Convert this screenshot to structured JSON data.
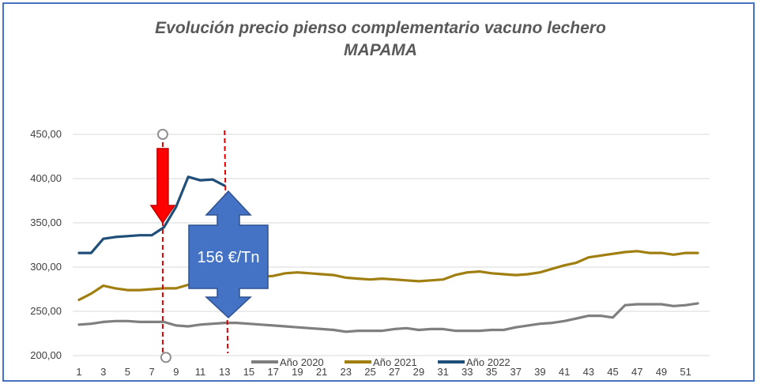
{
  "chart_data": {
    "type": "line",
    "title": "Evolución precio pienso complementario vacuno lechero",
    "subtitle": "MAPAMA",
    "xlabel": "",
    "ylabel": "",
    "ylim": [
      200,
      450
    ],
    "yticks": [
      "200,00",
      "250,00",
      "300,00",
      "350,00",
      "400,00",
      "450,00"
    ],
    "ytick_values": [
      200,
      250,
      300,
      350,
      400,
      450
    ],
    "xticks": [
      1,
      3,
      5,
      7,
      9,
      11,
      13,
      15,
      17,
      19,
      21,
      23,
      25,
      27,
      29,
      31,
      33,
      35,
      37,
      39,
      41,
      43,
      45,
      47,
      49,
      51
    ],
    "xlim": [
      1,
      52
    ],
    "grid": "horizontal",
    "legend_position": "bottom",
    "series": [
      {
        "name": "Año 2020",
        "color": "#7f7f7f",
        "x": [
          1,
          2,
          3,
          4,
          5,
          6,
          7,
          8,
          9,
          10,
          11,
          12,
          13,
          14,
          15,
          16,
          17,
          18,
          19,
          20,
          21,
          22,
          23,
          24,
          25,
          26,
          27,
          28,
          29,
          30,
          31,
          32,
          33,
          34,
          35,
          36,
          37,
          38,
          39,
          40,
          41,
          42,
          43,
          44,
          45,
          46,
          47,
          48,
          49,
          50,
          51,
          52
        ],
        "values": [
          235,
          236,
          238,
          239,
          239,
          238,
          238,
          238,
          234,
          233,
          235,
          236,
          237,
          237,
          236,
          235,
          234,
          233,
          232,
          231,
          230,
          229,
          227,
          228,
          228,
          228,
          230,
          231,
          229,
          230,
          230,
          228,
          228,
          228,
          229,
          229,
          232,
          234,
          236,
          237,
          239,
          242,
          245,
          245,
          243,
          257,
          258,
          258,
          258,
          256,
          257,
          259
        ]
      },
      {
        "name": "Año 2021",
        "color": "#a07f10",
        "x": [
          1,
          2,
          3,
          4,
          5,
          6,
          7,
          8,
          9,
          10,
          11,
          12,
          13,
          14,
          15,
          16,
          17,
          18,
          19,
          20,
          21,
          22,
          23,
          24,
          25,
          26,
          27,
          28,
          29,
          30,
          31,
          32,
          33,
          34,
          35,
          36,
          37,
          38,
          39,
          40,
          41,
          42,
          43,
          44,
          45,
          46,
          47,
          48,
          49,
          50,
          51,
          52
        ],
        "values": [
          263,
          270,
          279,
          276,
          274,
          274,
          275,
          276,
          276,
          280,
          283,
          285,
          286,
          287,
          288,
          289,
          290,
          293,
          294,
          293,
          292,
          291,
          288,
          287,
          286,
          287,
          286,
          285,
          284,
          285,
          286,
          291,
          294,
          295,
          293,
          292,
          291,
          292,
          294,
          298,
          302,
          305,
          311,
          313,
          315,
          317,
          318,
          316,
          316,
          314,
          316,
          316
        ]
      },
      {
        "name": "Año 2022",
        "color": "#1f4e79",
        "x": [
          1,
          2,
          3,
          4,
          5,
          6,
          7,
          8,
          9,
          10,
          11,
          12,
          13
        ],
        "values": [
          316,
          316,
          332,
          334,
          335,
          336,
          336,
          345,
          368,
          402,
          398,
          399,
          392
        ]
      }
    ],
    "annotations": {
      "callout_text": "156 €/Tn",
      "marker_lines_x": [
        7.9,
        13
      ]
    }
  }
}
